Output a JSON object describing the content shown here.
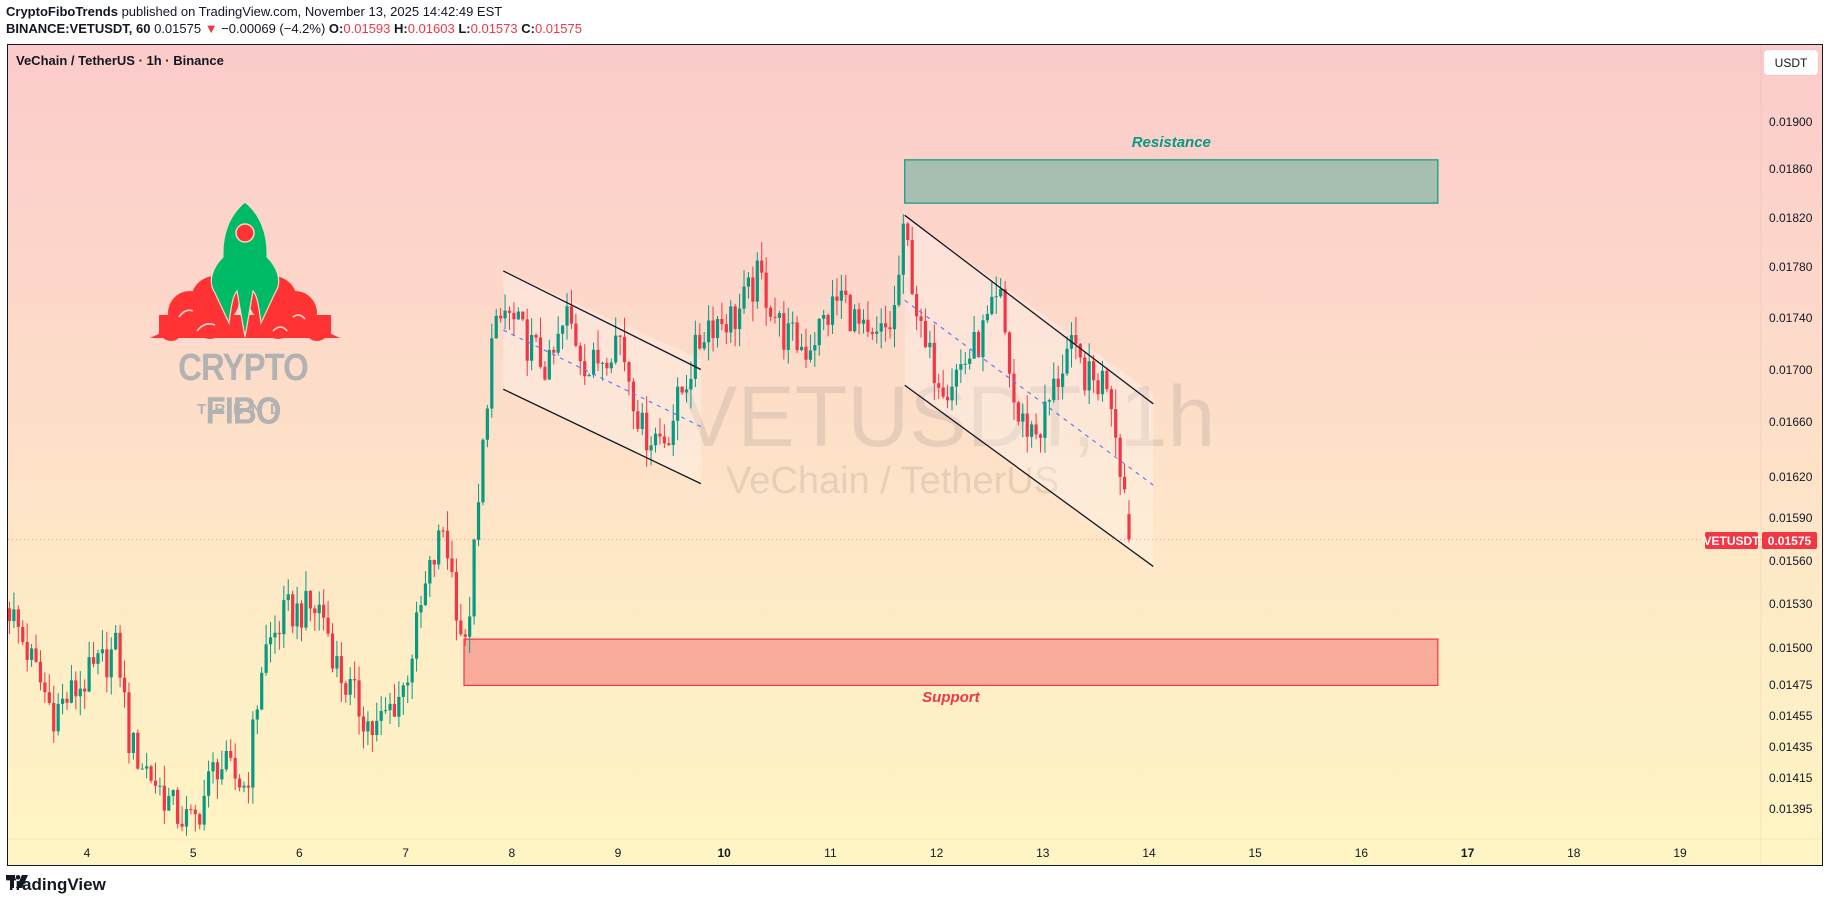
{
  "header": {
    "author": "CryptoFiboTrends",
    "published_text": "published on TradingView.com, November 13, 2025 14:42:49 EST",
    "symbol_line": "BINANCE:VETUSDT, 60",
    "last_price": "0.01575",
    "change_arrow": "▼",
    "change": "−0.00069 (−4.2%)",
    "o_label": "O:",
    "o_value": "0.01593",
    "h_label": "H:",
    "h_value": "0.01603",
    "l_label": "L:",
    "l_value": "0.01573",
    "c_label": "C:",
    "c_value": "0.01575"
  },
  "chart": {
    "legend_title": "VeChain / TetherUS · 1h · Binance",
    "currency_button": "USDT",
    "watermark_symbol": "VETUSDT, 1h",
    "watermark_name": "VeChain / TetherUS",
    "resistance_label": "Resistance",
    "support_label": "Support",
    "symbol_tag": "VETUSDT",
    "price_tag": "0.01575",
    "logo_title": "CRYPTO FIBO",
    "logo_subtitle": "TREND",
    "colors": {
      "up": "#089981",
      "down": "#F23645",
      "resistance_fill": "#a6bfb1",
      "resistance_border": "#089981",
      "support_fill": "#f9ab9b",
      "support_border": "#F23645",
      "channel_line": "#131722",
      "channel_mid": "#5b7cfa"
    }
  },
  "footer": {
    "brand": "TradingView"
  },
  "chart_data": {
    "type": "candlestick",
    "title": "VeChain / TetherUS · 1h · Binance",
    "symbol": "BINANCE:VETUSDT",
    "interval": "1h",
    "scale": "log",
    "ylim": [
      0.01375,
      0.01945
    ],
    "y_ticks": [
      "0.01900",
      "0.01860",
      "0.01820",
      "0.01780",
      "0.01740",
      "0.01700",
      "0.01660",
      "0.01620",
      "0.01590",
      "0.01560",
      "0.01530",
      "0.01500",
      "0.01475",
      "0.01455",
      "0.01435",
      "0.01415",
      "0.01395"
    ],
    "x_ticks": [
      {
        "label": "4",
        "day": 4
      },
      {
        "label": "5",
        "day": 5
      },
      {
        "label": "6",
        "day": 6
      },
      {
        "label": "7",
        "day": 7
      },
      {
        "label": "8",
        "day": 8
      },
      {
        "label": "9",
        "day": 9
      },
      {
        "label": "10",
        "day": 10,
        "bold": true
      },
      {
        "label": "11",
        "day": 11
      },
      {
        "label": "12",
        "day": 12
      },
      {
        "label": "13",
        "day": 13
      },
      {
        "label": "14",
        "day": 14
      },
      {
        "label": "15",
        "day": 15
      },
      {
        "label": "16",
        "day": 16
      },
      {
        "label": "17",
        "day": 17,
        "bold": true
      },
      {
        "label": "18",
        "day": 18
      },
      {
        "label": "19",
        "day": 19
      }
    ],
    "last": {
      "open": 0.01593,
      "high": 0.01603,
      "low": 0.01573,
      "close": 0.01575
    },
    "price_path_anchors": [
      [
        3.27,
        0.01527
      ],
      [
        3.68,
        0.01457
      ],
      [
        4.29,
        0.015
      ],
      [
        4.4,
        0.01437
      ],
      [
        4.84,
        0.01393
      ],
      [
        5.0,
        0.01385
      ],
      [
        5.22,
        0.01425
      ],
      [
        5.5,
        0.01409
      ],
      [
        5.66,
        0.01496
      ],
      [
        5.88,
        0.01524
      ],
      [
        6.21,
        0.01527
      ],
      [
        6.37,
        0.01484
      ],
      [
        6.7,
        0.01444
      ],
      [
        6.98,
        0.01473
      ],
      [
        7.2,
        0.01544
      ],
      [
        7.36,
        0.01584
      ],
      [
        7.56,
        0.01496
      ],
      [
        7.69,
        0.016
      ],
      [
        7.8,
        0.01716
      ],
      [
        7.93,
        0.01745
      ],
      [
        8.35,
        0.01699
      ],
      [
        8.52,
        0.01741
      ],
      [
        8.73,
        0.01699
      ],
      [
        9.01,
        0.01728
      ],
      [
        9.23,
        0.01653
      ],
      [
        9.45,
        0.01649
      ],
      [
        9.67,
        0.01699
      ],
      [
        9.84,
        0.01737
      ],
      [
        10.11,
        0.01741
      ],
      [
        10.33,
        0.01773
      ],
      [
        10.55,
        0.01728
      ],
      [
        10.77,
        0.01716
      ],
      [
        11.1,
        0.01758
      ],
      [
        11.37,
        0.01716
      ],
      [
        11.59,
        0.01737
      ],
      [
        11.7,
        0.01811
      ],
      [
        11.87,
        0.01716
      ],
      [
        12.09,
        0.01689
      ],
      [
        12.36,
        0.01716
      ],
      [
        12.6,
        0.01754
      ],
      [
        12.75,
        0.01662
      ],
      [
        12.96,
        0.01653
      ],
      [
        13.24,
        0.01716
      ],
      [
        13.46,
        0.01689
      ],
      [
        13.62,
        0.01694
      ],
      [
        13.74,
        0.01626
      ],
      [
        13.84,
        0.01575
      ]
    ],
    "zones": [
      {
        "name": "Resistance",
        "day_from": 11.7,
        "day_to": 16.72,
        "price_top": 0.01868,
        "price_bottom": 0.01832
      },
      {
        "name": "Support",
        "day_from": 7.55,
        "day_to": 16.72,
        "price_top": 0.01506,
        "price_bottom": 0.01475
      }
    ],
    "channels": [
      {
        "name": "descending channel 1",
        "upper": [
          [
            7.92,
            0.01777
          ],
          [
            9.78,
            0.017
          ]
        ],
        "lower": [
          [
            7.92,
            0.01685
          ],
          [
            9.78,
            0.01615
          ]
        ]
      },
      {
        "name": "descending channel 2",
        "upper": [
          [
            11.7,
            0.01822
          ],
          [
            14.04,
            0.01674
          ]
        ],
        "lower": [
          [
            11.7,
            0.01688
          ],
          [
            14.04,
            0.01556
          ]
        ]
      }
    ]
  }
}
